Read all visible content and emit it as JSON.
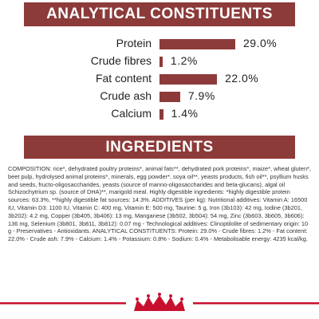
{
  "chart_data": {
    "type": "bar",
    "orientation": "horizontal",
    "title": "ANALYTICAL CONSTITUENTS",
    "categories": [
      "Protein",
      "Crude fibres",
      "Fat content",
      "Crude ash",
      "Calcium"
    ],
    "values": [
      29.0,
      1.2,
      22.0,
      7.9,
      1.4
    ],
    "value_labels": [
      "29.0%",
      "1.2%",
      "22.0%",
      "7.9%",
      "1.4%"
    ],
    "color": "#8c3b3a"
  },
  "ingredients": {
    "title": "INGREDIENTS",
    "text": "COMPOSITION: rice*, dehydrated poultry proteins*, animal fats**, dehydrated pork proteins*, maize*, wheat gluten*, beet pulp, hydrolysed animal proteins*, minerals, egg powder*, soya oil**, yeasts products, fish oil**, psyllium husks and seeds, fructo-oligosaccharides, yeasts (source of manno-oligosaccharides and beta-glucans), algal oil Schizochytrium sp. (source of DHA)**, marigold meal. Highly digestible ingredients: *highly digestible protein sources: 63.3%, **highly digestible fat sources: 14.3%. ADDITIVES (per kg): Nutritional additives: Vitamin A: 16500 IU, Vitamin D3: 1100 IU, Vitamin C: 400 mg, Vitamin E: 500 mg, Taurine: 5 g, Iron (3b103): 42 mg, Iodine (3b201, 3b202): 4.2 mg, Copper (3b405, 3b406): 13 mg, Manganese (3b502, 3b504): 54 mg, Zinc (3b603, 3b605, 3b606): 136 mg, Selenium (3b801, 3b811, 3b812): 0.07 mg - Technological additives: Clinoptilolite of sedimentary origin: 10 g - Preservatives - Antioxidants. ANALYTICAL CONSTITUENTS: Protein: 29.0% - Crude fibres: 1.2% - Fat content: 22.0% - Crude ash: 7.9% - Calcium: 1.4% - Potassium: 0.8% - Sodium: 0.4% - Metabolisable energy: 4235 kcal/kg."
  }
}
